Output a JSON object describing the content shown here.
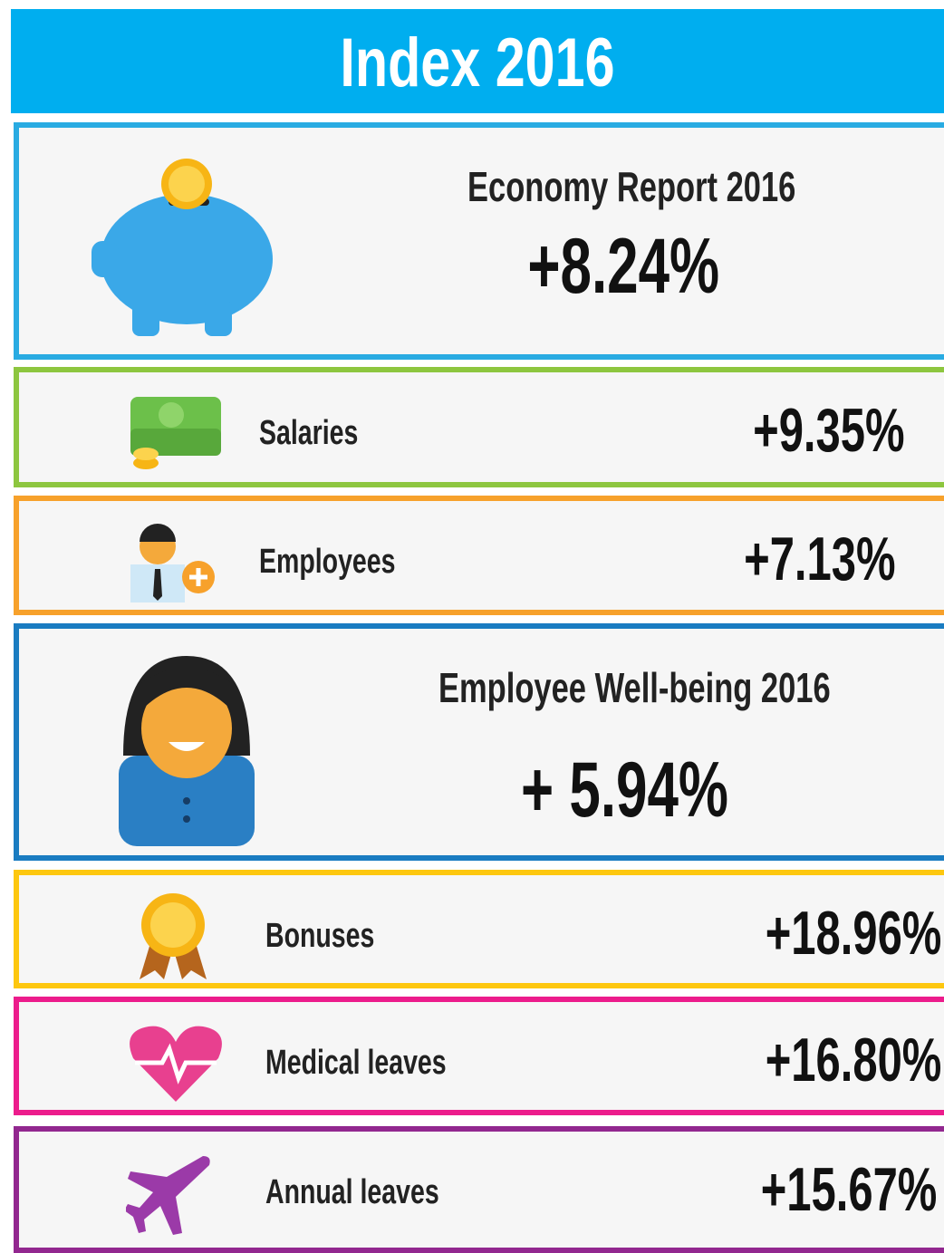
{
  "header": {
    "title": "Index 2016"
  },
  "sections": [
    {
      "title": "Economy Report 2016",
      "value": "+8.24%"
    },
    {
      "label": "Salaries",
      "value": "+9.35%"
    },
    {
      "label": "Employees",
      "value": "+7.13%"
    },
    {
      "title": "Employee Well-being  2016",
      "value": "+ 5.94%"
    },
    {
      "label": "Bonuses",
      "value": "+18.96%"
    },
    {
      "label": "Medical leaves",
      "value": "+16.80%"
    },
    {
      "label": "Annual leaves",
      "value": "+15.67%"
    }
  ]
}
